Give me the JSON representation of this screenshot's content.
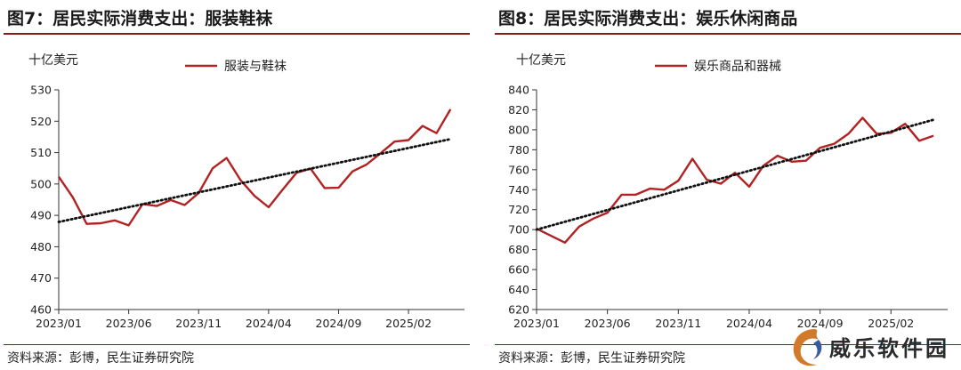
{
  "chart_data": [
    {
      "type": "line",
      "title": "图7：居民实际消费支出：服装鞋袜",
      "unit_label": "十亿美元",
      "legend": "服装与鞋袜",
      "source": "资料来源：彭博，民生证券研究院",
      "ylim": [
        460,
        530
      ],
      "yticks": [
        460,
        470,
        480,
        490,
        500,
        510,
        520,
        530
      ],
      "x_tick_labels": [
        "2023/01",
        "2023/06",
        "2023/11",
        "2024/04",
        "2024/09",
        "2025/02"
      ],
      "x_tick_index": [
        0,
        5,
        10,
        15,
        20,
        25
      ],
      "x_range": [
        0,
        29
      ],
      "series": [
        {
          "name": "服装与鞋袜",
          "x": [
            "2023/01",
            "2023/02",
            "2023/03",
            "2023/04",
            "2023/05",
            "2023/06",
            "2023/07",
            "2023/08",
            "2023/09",
            "2023/10",
            "2023/11",
            "2023/12",
            "2024/01",
            "2024/02",
            "2024/03",
            "2024/04",
            "2024/05",
            "2024/06",
            "2024/07",
            "2024/08",
            "2024/09",
            "2024/10",
            "2024/11",
            "2024/12",
            "2025/01",
            "2025/02",
            "2025/03",
            "2025/04",
            "2025/05",
            "2025/06"
          ],
          "values": [
            502.3,
            495.8,
            487.3,
            487.5,
            488.4,
            486.8,
            493.6,
            493.0,
            494.9,
            493.3,
            497.1,
            505.0,
            508.3,
            501.2,
            496.2,
            492.6,
            498.2,
            503.6,
            504.9,
            498.7,
            498.8,
            504.0,
            506.2,
            509.8,
            513.5,
            514.0,
            518.5,
            516.2,
            523.8,
            null
          ],
          "color": "#b22222"
        },
        {
          "name": "",
          "style": "dotted-trend",
          "x": [
            "2023/01",
            "2025/05"
          ],
          "values": [
            487.9,
            514.3
          ],
          "color": "#111111"
        }
      ]
    },
    {
      "type": "line",
      "title": "图8：居民实际消费支出：娱乐休闲商品",
      "unit_label": "十亿美元",
      "legend": "娱乐商品和器械",
      "source": "资料来源：彭博，民生证券研究院",
      "ylim": [
        620,
        840
      ],
      "yticks": [
        620,
        640,
        660,
        680,
        700,
        720,
        740,
        760,
        780,
        800,
        820,
        840
      ],
      "x_tick_labels": [
        "2023/01",
        "2023/06",
        "2023/11",
        "2024/04",
        "2024/09",
        "2025/02"
      ],
      "x_tick_index": [
        0,
        5,
        10,
        15,
        20,
        25
      ],
      "x_range": [
        0,
        29
      ],
      "series": [
        {
          "name": "娱乐商品和器械",
          "x": [
            "2023/01",
            "2023/02",
            "2023/03",
            "2023/04",
            "2023/05",
            "2023/06",
            "2023/07",
            "2023/08",
            "2023/09",
            "2023/10",
            "2023/11",
            "2023/12",
            "2024/01",
            "2024/02",
            "2024/03",
            "2024/04",
            "2024/05",
            "2024/06",
            "2024/07",
            "2024/08",
            "2024/09",
            "2024/10",
            "2024/11",
            "2024/12",
            "2025/01",
            "2025/02",
            "2025/03",
            "2025/04",
            "2025/05"
          ],
          "values": [
            701,
            694,
            687,
            703,
            711,
            717,
            735,
            735,
            741,
            740,
            749,
            771,
            750,
            746,
            757,
            743,
            764,
            774,
            768,
            769,
            782,
            786,
            796,
            812,
            796,
            797,
            806,
            789,
            794
          ],
          "color": "#b22222"
        },
        {
          "name": "",
          "style": "dotted-trend",
          "x": [
            "2023/01",
            "2025/05"
          ],
          "values": [
            700,
            810
          ],
          "color": "#111111"
        }
      ]
    }
  ],
  "watermark": {
    "text": "威乐软件园"
  }
}
